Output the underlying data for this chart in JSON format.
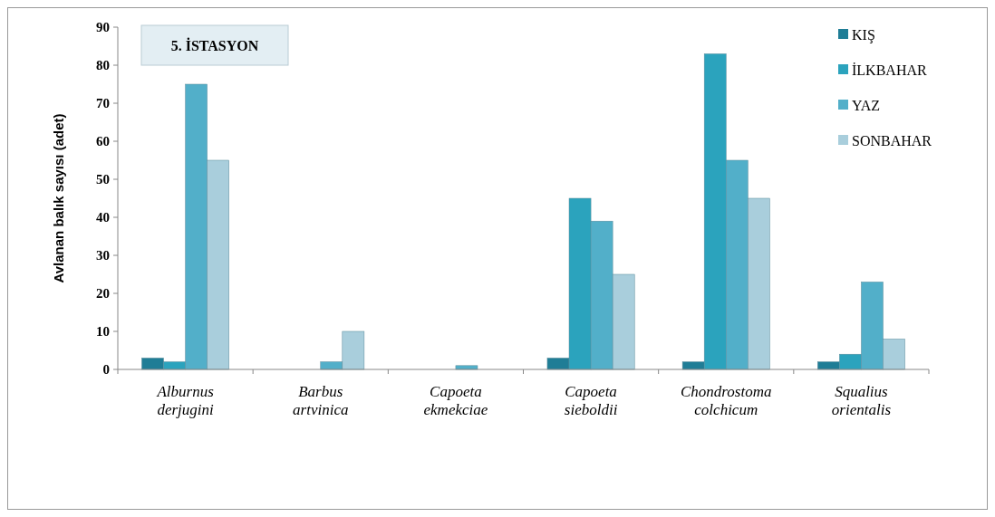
{
  "chart_data": {
    "type": "bar",
    "title": "5. İSTASYON",
    "ylabel": "Avlanan balık sayısı (adet)",
    "categories": [
      "Alburnus derjugini",
      "Barbus artvinica",
      "Capoeta ekmekciae",
      "Capoeta sieboldii",
      "Chondrostoma colchicum",
      "Squalius orientalis"
    ],
    "series": [
      {
        "name": "KIŞ",
        "color": "#1f7d96",
        "values": [
          3,
          null,
          null,
          3,
          2,
          2
        ]
      },
      {
        "name": "İLKBAHAR",
        "color": "#2ba3bd",
        "values": [
          2,
          null,
          null,
          45,
          83,
          4
        ]
      },
      {
        "name": "YAZ",
        "color": "#52afc9",
        "values": [
          75,
          2,
          1,
          39,
          55,
          23
        ]
      },
      {
        "name": "SONBAHAR",
        "color": "#a9cedc",
        "values": [
          55,
          10,
          null,
          25,
          45,
          8
        ]
      }
    ],
    "ylim": [
      0,
      90
    ],
    "yticks": [
      0,
      10,
      20,
      30,
      40,
      50,
      60,
      70,
      80,
      90
    ],
    "grid": false,
    "legend": "top right"
  }
}
